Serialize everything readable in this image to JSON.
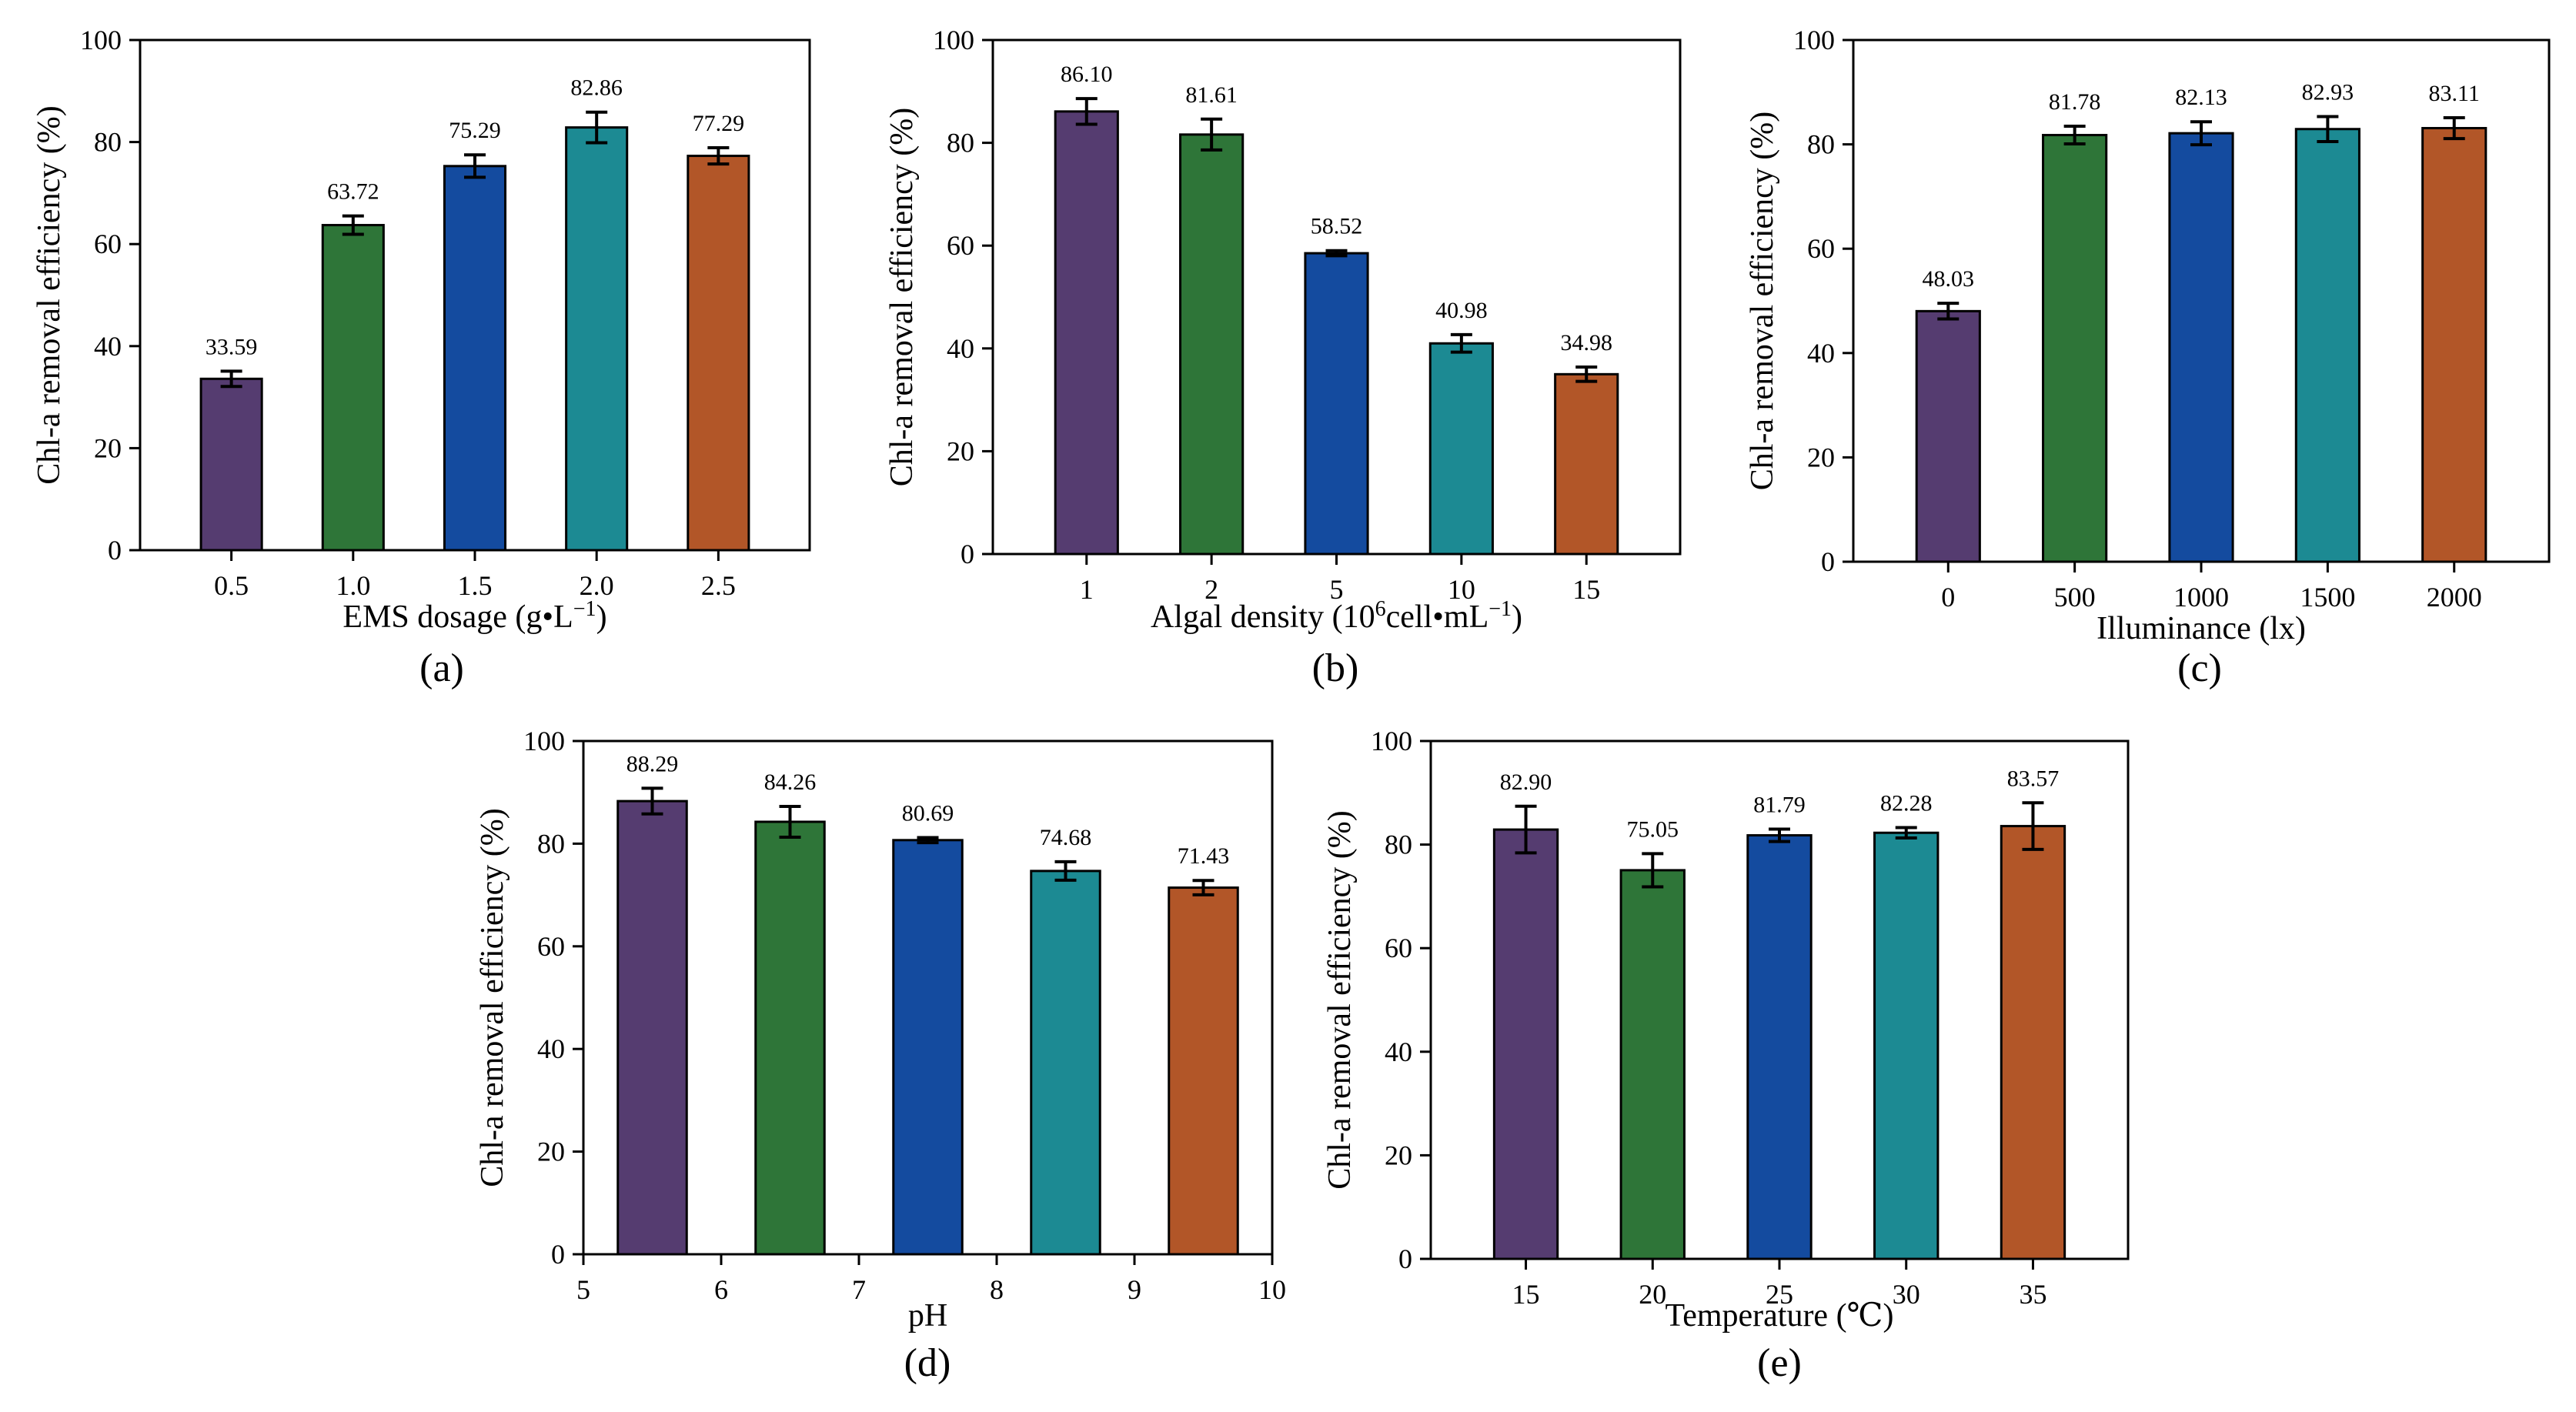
{
  "colors": {
    "bars": [
      "#553c70",
      "#2e7538",
      "#144b9f",
      "#1c8a93",
      "#b25628"
    ],
    "axis": "#000000",
    "error_bar": "#000000"
  },
  "chart_data": [
    {
      "id": "a",
      "type": "bar",
      "panel_label": "(a)",
      "categories": [
        "0.5",
        "1.0",
        "1.5",
        "2.0",
        "2.5"
      ],
      "values": [
        33.59,
        63.72,
        75.29,
        82.86,
        77.29
      ],
      "value_labels": [
        "33.59",
        "63.72",
        "75.29",
        "82.86",
        "77.29"
      ],
      "errors": [
        1.5,
        1.8,
        2.2,
        3.0,
        1.6
      ],
      "xlabel": "EMS dosage (g•L",
      "xlabel_sup": "−1",
      "xlabel_end": ")",
      "ylabel": "Chl-a removal efficiency (%)",
      "ylim": [
        0,
        100
      ],
      "yticks": [
        "0",
        "20",
        "40",
        "60",
        "80",
        "100"
      ]
    },
    {
      "id": "b",
      "type": "bar",
      "panel_label": "(b)",
      "categories": [
        "1",
        "2",
        "5",
        "10",
        "15"
      ],
      "values": [
        86.1,
        81.61,
        58.52,
        40.98,
        34.98
      ],
      "value_labels": [
        "86.10",
        "81.61",
        "58.52",
        "40.98",
        "34.98"
      ],
      "errors": [
        2.5,
        3.0,
        0.5,
        1.7,
        1.4
      ],
      "xlabel": "Algal density (10",
      "xlabel_sup": "6",
      "xlabel_mid": "cell•mL",
      "xlabel_sup2": "−1",
      "xlabel_end": ")",
      "ylabel": "Chl-a removal efficiency (%)",
      "ylim": [
        0,
        100
      ],
      "yticks": [
        "0",
        "20",
        "40",
        "60",
        "80",
        "100"
      ]
    },
    {
      "id": "c",
      "type": "bar",
      "panel_label": "(c)",
      "categories": [
        "0",
        "500",
        "1000",
        "1500",
        "2000"
      ],
      "values": [
        48.03,
        81.78,
        82.13,
        82.93,
        83.11
      ],
      "value_labels": [
        "48.03",
        "81.78",
        "82.13",
        "82.93",
        "83.11"
      ],
      "errors": [
        1.5,
        1.7,
        2.2,
        2.4,
        2.0
      ],
      "xlabel": "Illuminance (lx)",
      "ylabel": "Chl-a removal efficiency (%)",
      "ylim": [
        0,
        100
      ],
      "yticks": [
        "0",
        "20",
        "40",
        "60",
        "80",
        "100"
      ]
    },
    {
      "id": "d",
      "type": "bar",
      "panel_label": "(d)",
      "categories": [
        "5.5",
        "6.5",
        "7.5",
        "8.5",
        "9.5"
      ],
      "values": [
        88.29,
        84.26,
        80.69,
        74.68,
        71.43
      ],
      "value_labels": [
        "88.29",
        "84.26",
        "80.69",
        "74.68",
        "71.43"
      ],
      "errors": [
        2.5,
        3.0,
        0.5,
        1.8,
        1.4
      ],
      "xlabel": "pH",
      "ylabel": "Chl-a removal efficiency (%)",
      "xlim": [
        5,
        10
      ],
      "xticks": [
        "5",
        "6",
        "7",
        "8",
        "9",
        "10"
      ],
      "ylim": [
        0,
        100
      ],
      "yticks": [
        "0",
        "20",
        "40",
        "60",
        "80",
        "100"
      ]
    },
    {
      "id": "e",
      "type": "bar",
      "panel_label": "(e)",
      "categories": [
        "15",
        "20",
        "25",
        "30",
        "35"
      ],
      "values": [
        82.9,
        75.05,
        81.79,
        82.28,
        83.57
      ],
      "value_labels": [
        "82.90",
        "75.05",
        "81.79",
        "82.28",
        "83.57"
      ],
      "errors": [
        4.5,
        3.2,
        1.2,
        1.0,
        4.5
      ],
      "xlabel": "Temperature (℃)",
      "ylabel": "Chl-a removal efficiency (%)",
      "ylim": [
        0,
        100
      ],
      "yticks": [
        "0",
        "20",
        "40",
        "60",
        "80",
        "100"
      ]
    }
  ]
}
